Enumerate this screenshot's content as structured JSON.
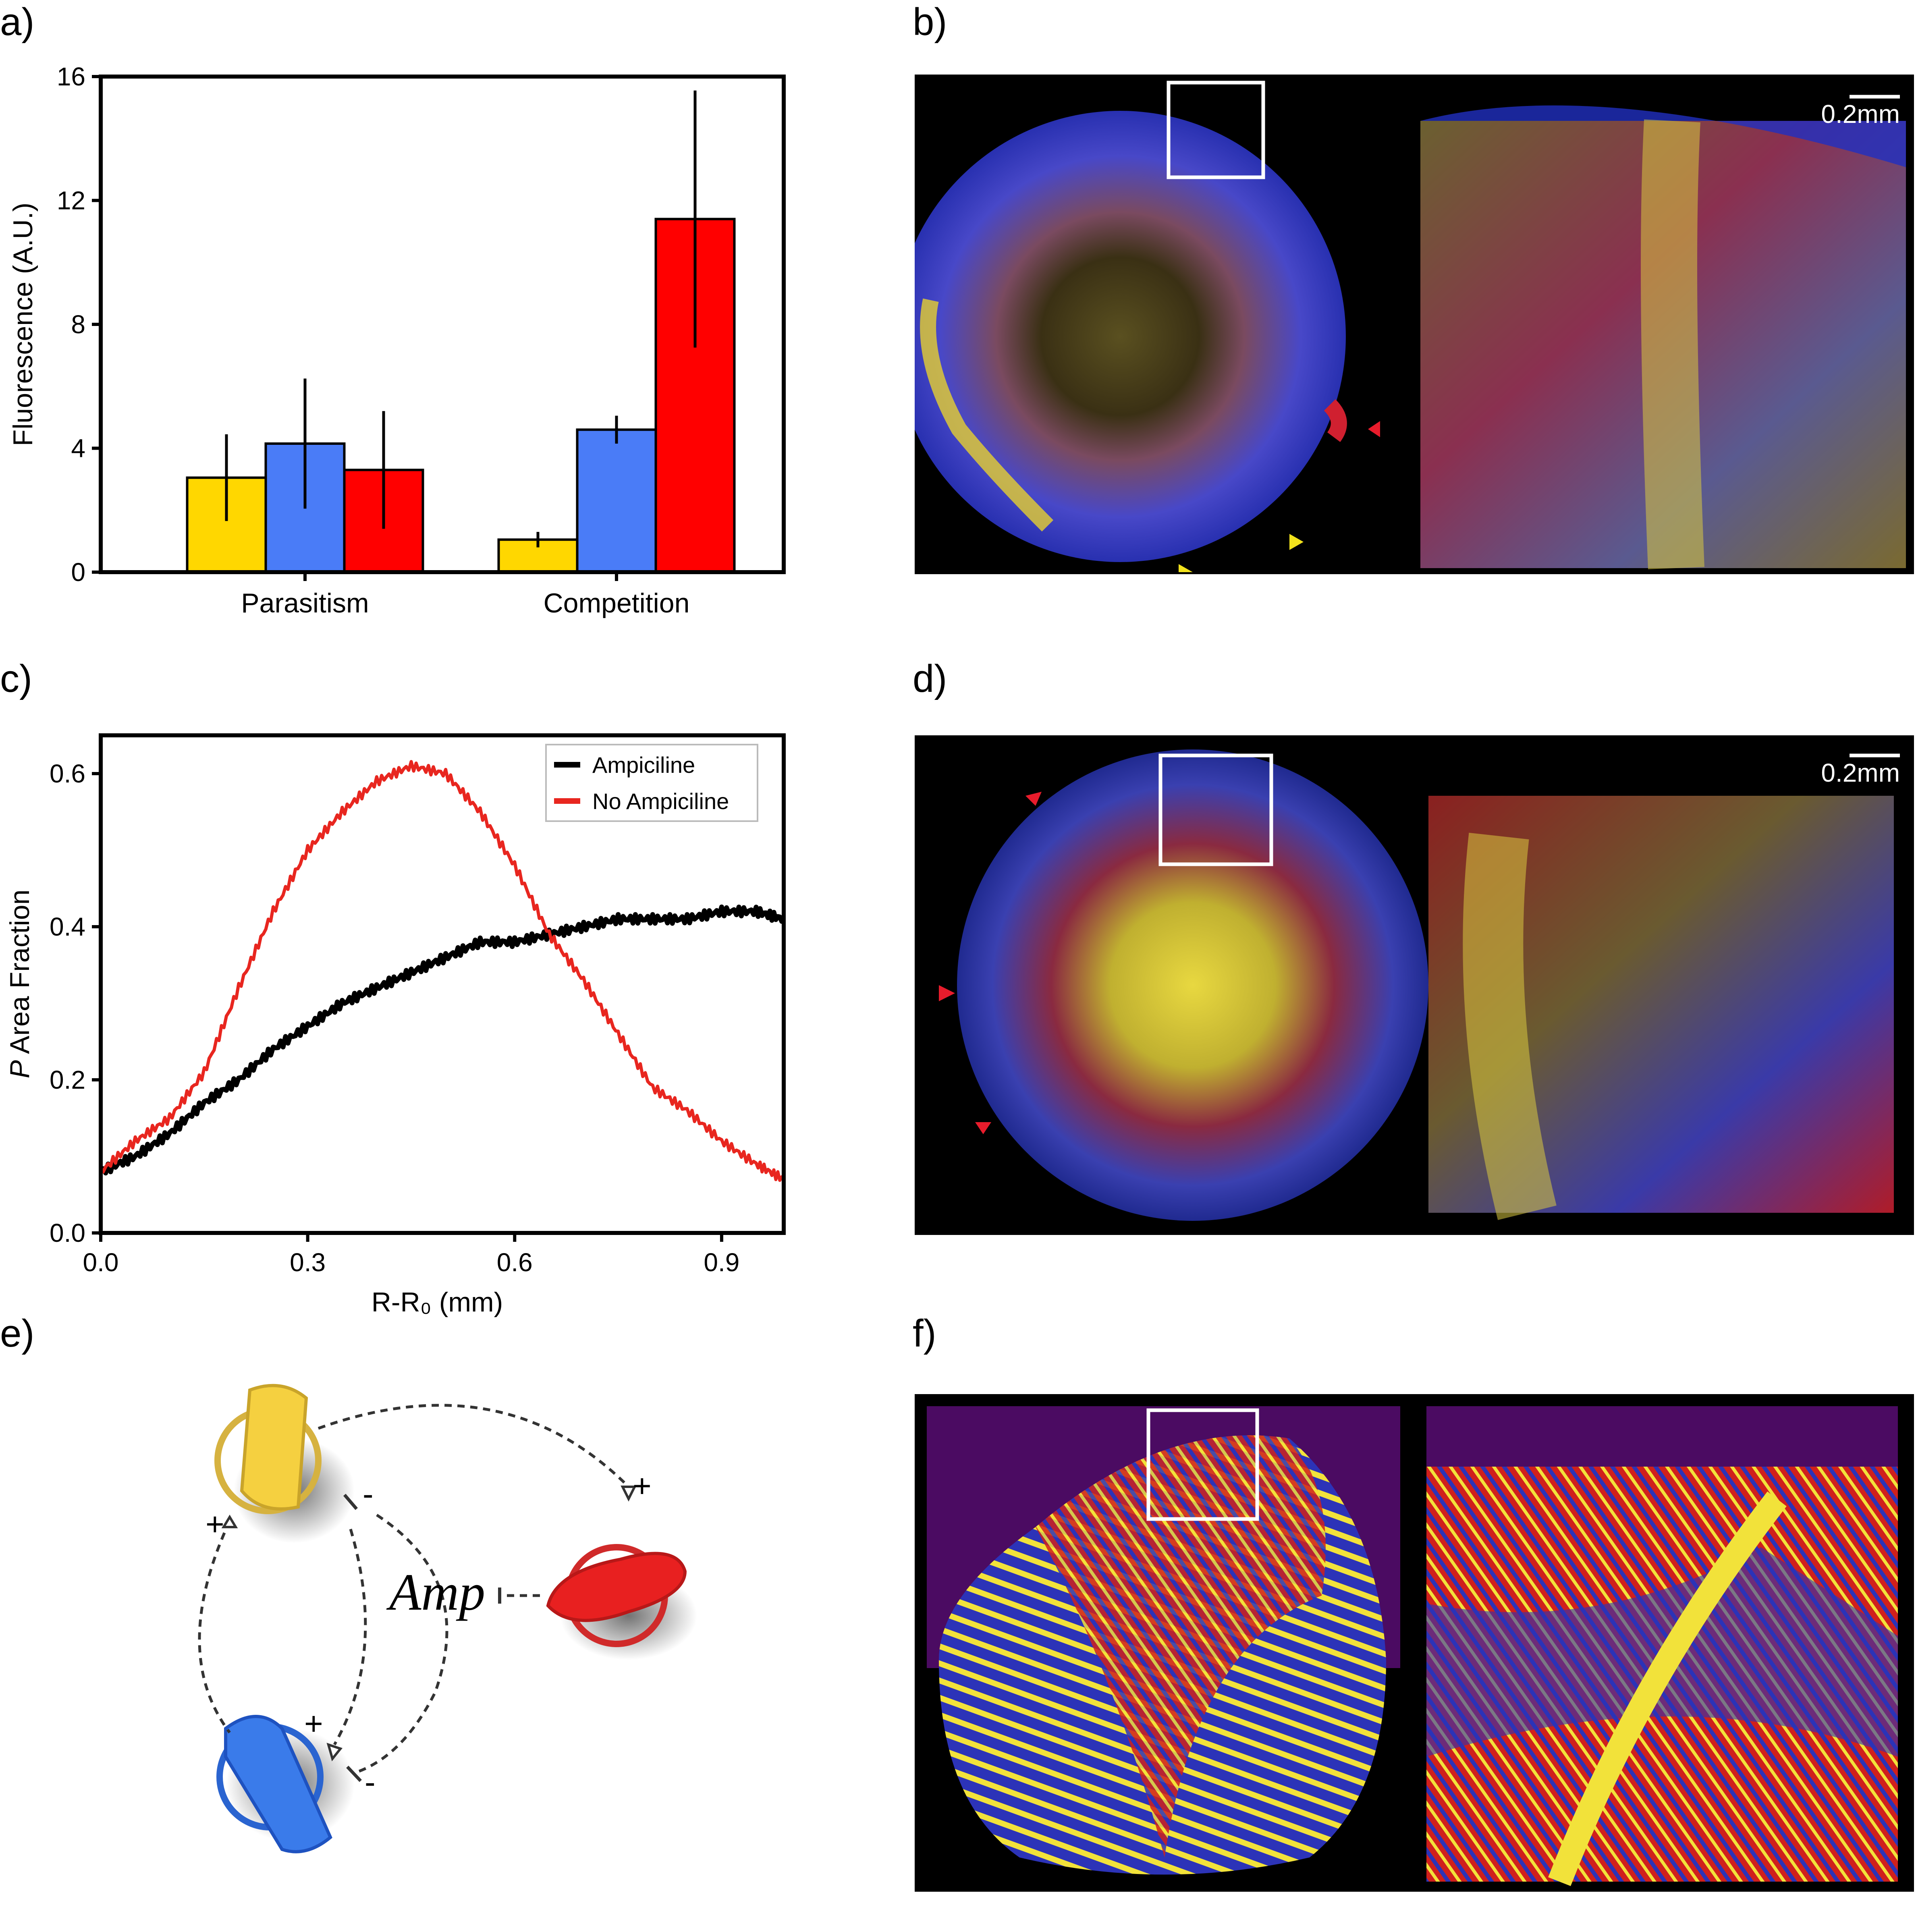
{
  "panels": {
    "a": "a)",
    "b": "b)",
    "c": "c)",
    "d": "d)",
    "e": "e)",
    "f": "f)"
  },
  "chart_data": [
    {
      "id": "a",
      "type": "bar",
      "title": "",
      "xlabel": "",
      "ylabel": "Fluorescence (A.U.)",
      "ylim": [
        0,
        16
      ],
      "yticks": [
        "0",
        "4",
        "8",
        "12",
        "16"
      ],
      "ytick_values": [
        0,
        4,
        8,
        12,
        16
      ],
      "categories": [
        "Parasitism",
        "Competition"
      ],
      "series": [
        {
          "name": "yellow",
          "color": "#FFD700",
          "values": [
            3.05,
            1.05
          ],
          "errors": [
            1.4,
            0.25
          ]
        },
        {
          "name": "blue",
          "color": "#4A7CF7",
          "values": [
            4.15,
            4.6
          ],
          "errors": [
            2.1,
            0.45
          ]
        },
        {
          "name": "red",
          "color": "#FF0000",
          "values": [
            3.3,
            11.4
          ],
          "errors": [
            1.9,
            4.15
          ]
        }
      ]
    },
    {
      "id": "c",
      "type": "line",
      "title": "",
      "xlabel": "R-R₀ (mm)",
      "ylabel_italic": "P",
      "ylabel": " Area Fraction",
      "xlim": [
        0,
        0.99
      ],
      "ylim": [
        0,
        0.65
      ],
      "xticks": [
        "0.0",
        "0.3",
        "0.6",
        "0.9"
      ],
      "xtick_values": [
        0,
        0.3,
        0.6,
        0.9
      ],
      "yticks": [
        "0.0",
        "0.2",
        "0.4",
        "0.6"
      ],
      "ytick_values": [
        0,
        0.2,
        0.4,
        0.6
      ],
      "legend_position": "top-right",
      "series": [
        {
          "name": "Ampiciline",
          "color": "#000000",
          "x": [
            0,
            0.05,
            0.1,
            0.15,
            0.2,
            0.25,
            0.3,
            0.35,
            0.4,
            0.45,
            0.5,
            0.55,
            0.6,
            0.65,
            0.7,
            0.75,
            0.8,
            0.85,
            0.9,
            0.95,
            0.99
          ],
          "y": [
            0.08,
            0.1,
            0.13,
            0.17,
            0.2,
            0.24,
            0.27,
            0.3,
            0.32,
            0.34,
            0.36,
            0.38,
            0.38,
            0.39,
            0.4,
            0.41,
            0.41,
            0.41,
            0.42,
            0.42,
            0.41
          ]
        },
        {
          "name": "No Ampiciline",
          "color": "#E8261F",
          "x": [
            0,
            0.05,
            0.1,
            0.15,
            0.2,
            0.25,
            0.3,
            0.35,
            0.4,
            0.45,
            0.5,
            0.55,
            0.6,
            0.65,
            0.7,
            0.75,
            0.8,
            0.85,
            0.9,
            0.95,
            0.99
          ],
          "y": [
            0.08,
            0.12,
            0.15,
            0.21,
            0.32,
            0.42,
            0.5,
            0.55,
            0.59,
            0.61,
            0.6,
            0.55,
            0.48,
            0.39,
            0.33,
            0.26,
            0.19,
            0.16,
            0.12,
            0.09,
            0.07
          ]
        }
      ]
    }
  ],
  "micrographs": {
    "b_scale": "0.2mm",
    "d_scale": "0.2mm"
  },
  "diagram": {
    "amp_label": "Amp",
    "sign_plus": "+",
    "sign_minus": "-"
  },
  "colors": {
    "yellow": "#FFD700",
    "blue": "#4A7CF7",
    "red": "#FF0000",
    "sim_background": "#4B0B62",
    "sim_red": "#D0201C",
    "sim_blue": "#2C33B8",
    "sim_yellow": "#F2E23A"
  }
}
